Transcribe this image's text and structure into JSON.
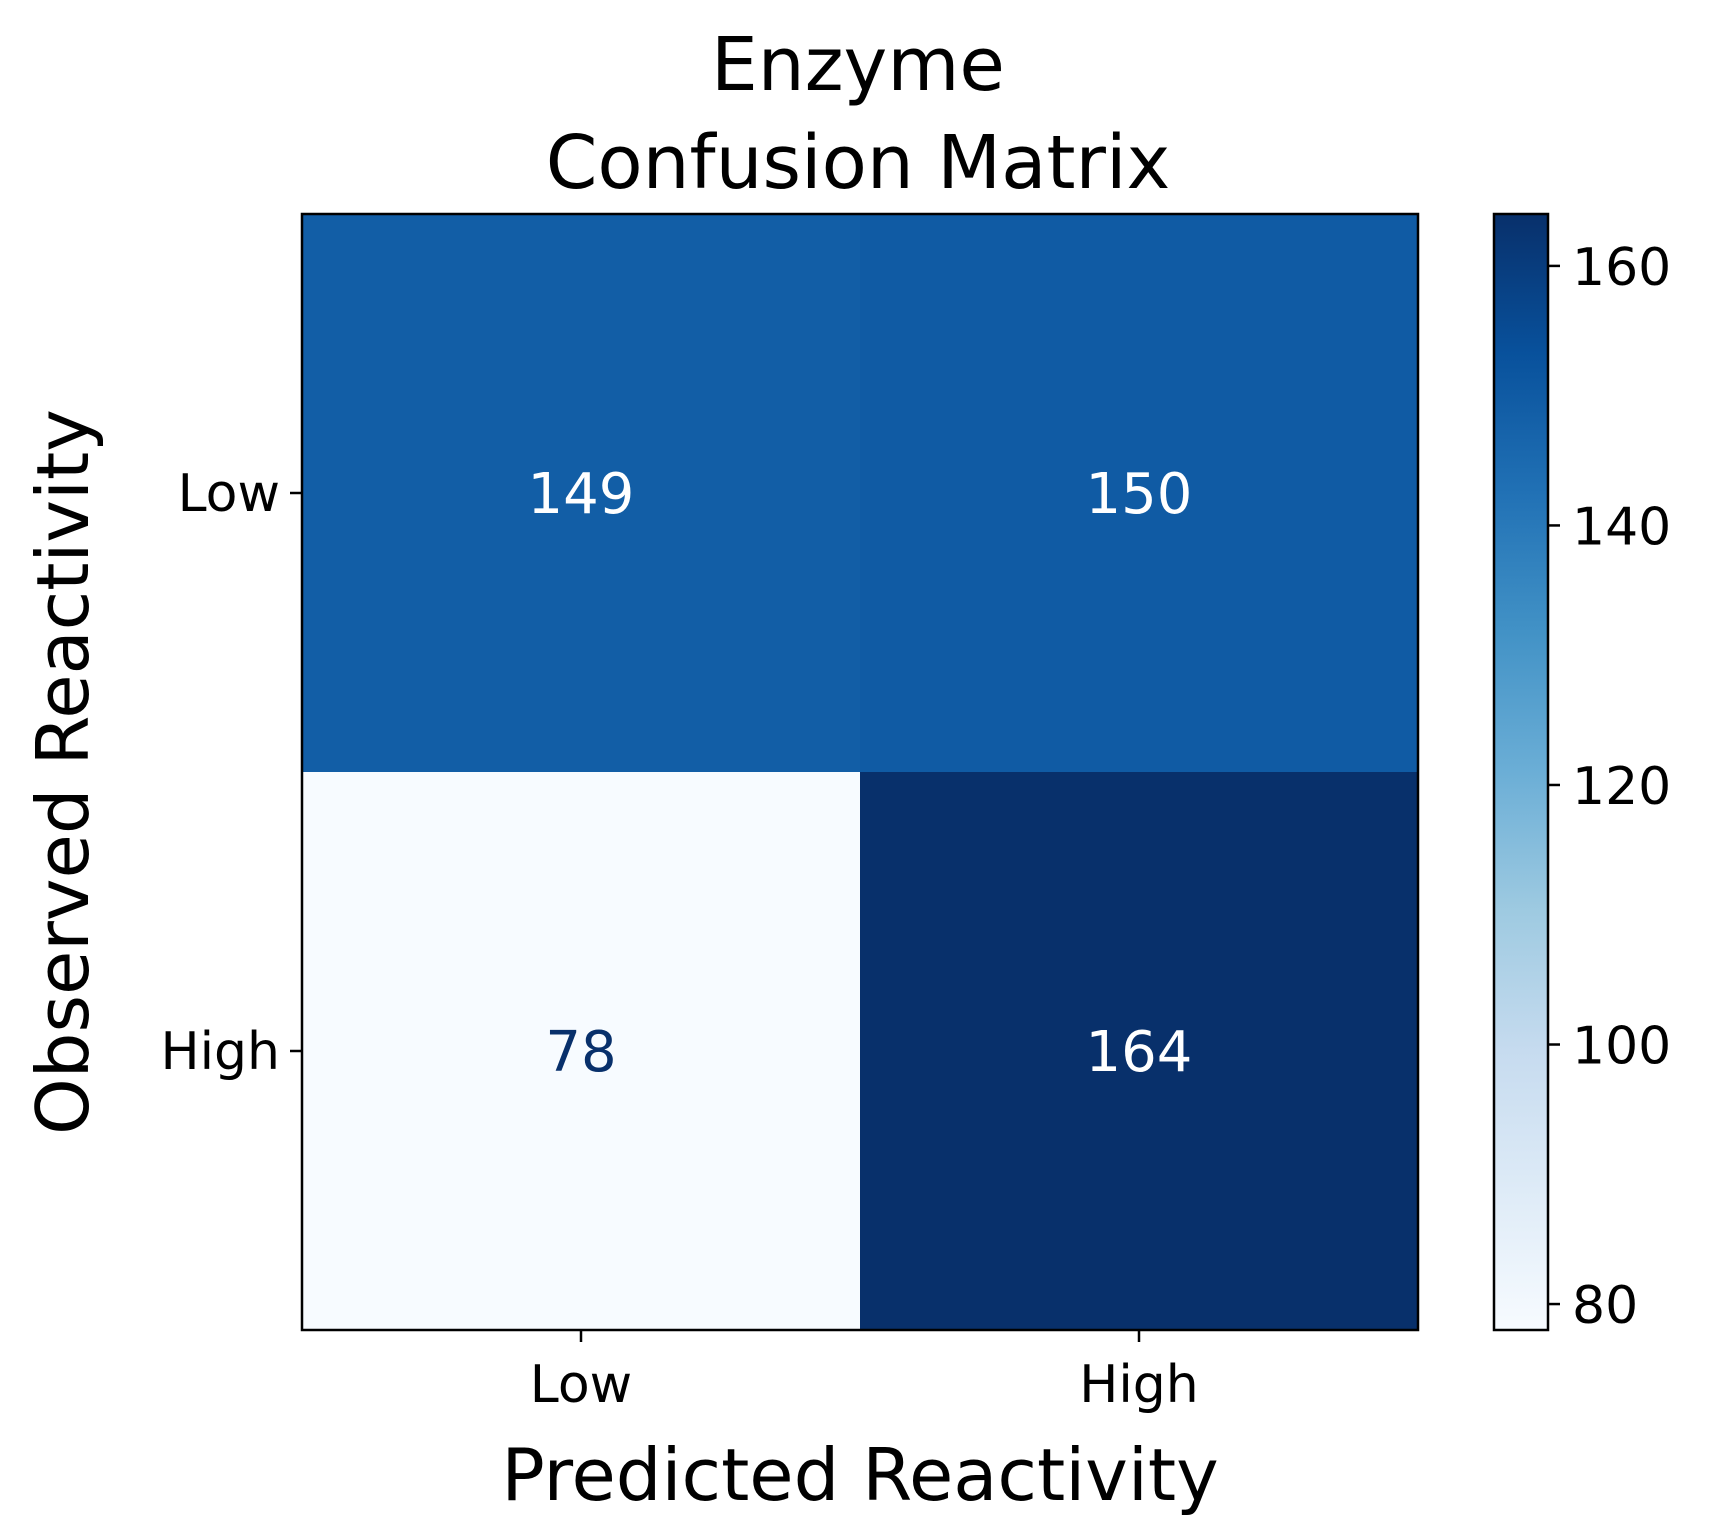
{
  "chart_data": {
    "type": "heatmap",
    "title": [
      "Enzyme",
      "Confusion Matrix"
    ],
    "xlabel": "Predicted Reactivity",
    "ylabel": "Observed Reactivity",
    "x_categories": [
      "Low",
      "High"
    ],
    "y_categories": [
      "Low",
      "High"
    ],
    "values": [
      [
        149,
        150
      ],
      [
        78,
        164
      ]
    ],
    "cell_labels": [
      [
        "149",
        "150"
      ],
      [
        "78",
        "164"
      ]
    ],
    "colormap": "Blues",
    "colorbar": {
      "range": [
        78,
        164
      ],
      "ticks": [
        80,
        100,
        120,
        140,
        160
      ],
      "tick_labels": [
        "80",
        "100",
        "120",
        "140",
        "160"
      ]
    },
    "colors": {
      "text_light": "#ffffff",
      "text_dark": "#08306b",
      "axis": "#000000"
    }
  }
}
